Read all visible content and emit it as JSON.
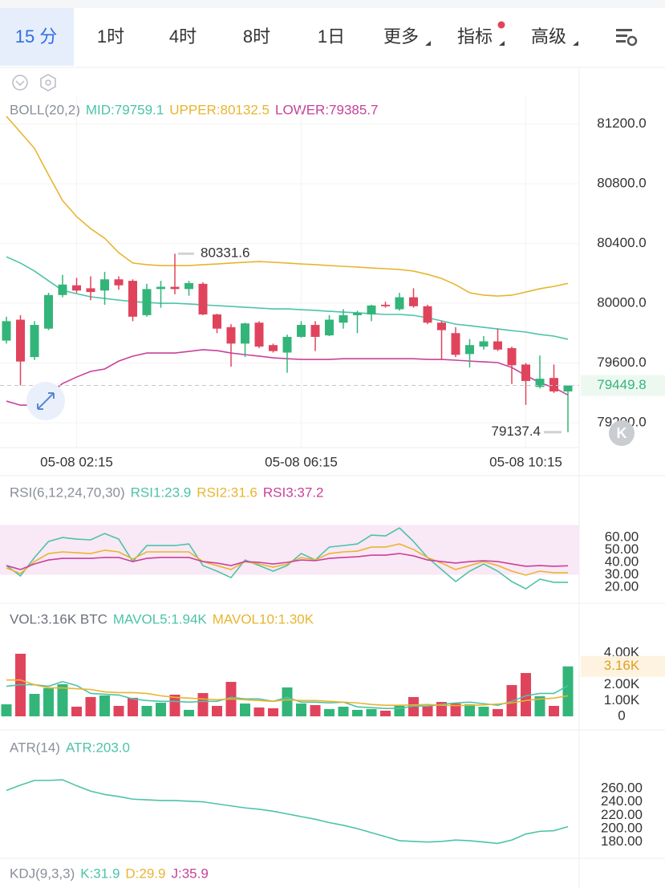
{
  "tabs": [
    "15 分",
    "1时",
    "4时",
    "8时",
    "1日",
    "更多",
    "指标",
    "高级"
  ],
  "active_tab": 0,
  "reset_button": "K",
  "time_labels": [
    "05-08 02:15",
    "05-08 06:15",
    "05-08 10:15"
  ],
  "colors": {
    "up": "#33b57a",
    "down": "#e0445c"
  },
  "main": {
    "legend": [
      {
        "text": "BOLL(20,2)",
        "color": "#8a8f99"
      },
      {
        "text": "MID:79759.1",
        "color": "#4cc3a8"
      },
      {
        "text": "UPPER:80132.5",
        "color": "#e8b530"
      },
      {
        "text": "LOWER:79385.7",
        "color": "#c8429b"
      }
    ],
    "ylim": [
      79034,
      81385
    ],
    "yticks": [
      {
        "value": 81200,
        "label": "81200.0"
      },
      {
        "value": 80800,
        "label": "80800.0"
      },
      {
        "value": 80400,
        "label": "80400.0"
      },
      {
        "value": 80000,
        "label": "80000.0"
      },
      {
        "value": 79600,
        "label": "79600.0"
      },
      {
        "value": 79200,
        "label": "79200.0"
      }
    ],
    "open": [
      79750,
      79890,
      79640,
      79830,
      80055,
      80120,
      80100,
      80085,
      80160,
      80150,
      79920,
      80095,
      80110,
      80095,
      80130,
      79925,
      79840,
      79730,
      79870,
      79720,
      79670,
      79775,
      79855,
      79785,
      79870,
      79920,
      79925,
      79990,
      79960,
      80040,
      79980,
      79870,
      79800,
      79660,
      79710,
      79745,
      79700,
      79590,
      79440,
      79500,
      79410
    ],
    "close": [
      79880,
      79610,
      79855,
      80055,
      80125,
      80085,
      80075,
      80160,
      80120,
      79910,
      80095,
      80110,
      80095,
      80135,
      79925,
      79830,
      79730,
      79865,
      79710,
      79680,
      79775,
      79855,
      79775,
      79890,
      79920,
      79935,
      79985,
      79980,
      80040,
      79980,
      79870,
      79820,
      79655,
      79720,
      79745,
      79690,
      79585,
      79480,
      79495,
      79410,
      79449.8
    ],
    "high": [
      79910,
      79920,
      79880,
      80070,
      80190,
      80170,
      80180,
      80210,
      80180,
      80160,
      80130,
      80150,
      80331.6,
      80150,
      80140,
      79930,
      79860,
      79870,
      79880,
      79730,
      79790,
      79880,
      79880,
      79920,
      79960,
      79950,
      79990,
      80010,
      80070,
      80100,
      79990,
      79880,
      79840,
      79760,
      79780,
      79830,
      79710,
      79600,
      79650,
      79590,
      79450
    ],
    "low": [
      79730,
      79450,
      79620,
      79820,
      80040,
      80070,
      80020,
      79990,
      80090,
      79880,
      79910,
      79970,
      80060,
      80050,
      79920,
      79800,
      79575,
      79640,
      79700,
      79670,
      79535,
      79770,
      79680,
      79780,
      79830,
      79800,
      79880,
      79970,
      79950,
      79970,
      79860,
      79620,
      79640,
      79570,
      79690,
      79680,
      79460,
      79320,
      79430,
      79400,
      79137.4
    ],
    "series": [
      {
        "name": "UPPER",
        "color": "#e8b530",
        "values": [
          81251,
          81144,
          81036,
          80859,
          80687,
          80580,
          80499,
          80435,
          80338,
          80269,
          80258,
          80252,
          80252,
          80252,
          80258,
          80263,
          80269,
          80274,
          80279,
          80274,
          80269,
          80263,
          80258,
          80252,
          80247,
          80242,
          80236,
          80231,
          80226,
          80215,
          80193,
          80166,
          80124,
          80070,
          80054,
          80048,
          80054,
          80075,
          80097,
          80113,
          80132.5
        ]
      },
      {
        "name": "MID",
        "color": "#4cc3a8",
        "values": [
          80311,
          80269,
          80215,
          80150,
          80086,
          80064,
          80043,
          80032,
          80021,
          80011,
          80005,
          80000,
          80000,
          79995,
          79989,
          79984,
          79979,
          79973,
          79968,
          79962,
          79962,
          79957,
          79952,
          79946,
          79941,
          79936,
          79930,
          79925,
          79925,
          79919,
          79903,
          79882,
          79860,
          79850,
          79839,
          79828,
          79817,
          79807,
          79791,
          79780,
          79759.1
        ]
      },
      {
        "name": "LOWER",
        "color": "#c8429b",
        "values": [
          79345,
          79318,
          79318,
          79388,
          79463,
          79506,
          79544,
          79560,
          79613,
          79646,
          79667,
          79667,
          79667,
          79678,
          79689,
          79683,
          79667,
          79656,
          79646,
          79635,
          79629,
          79624,
          79624,
          79624,
          79629,
          79629,
          79629,
          79629,
          79629,
          79629,
          79624,
          79624,
          79619,
          79613,
          79608,
          79603,
          79570,
          79517,
          79468,
          79436,
          79385.7
        ]
      }
    ]
  },
  "rsi": {
    "legend": [
      {
        "text": "RSI(6,12,24,70,30)",
        "color": "#8a8f99"
      },
      {
        "text": "RSI1:23.9",
        "color": "#4cc3a8"
      },
      {
        "text": "RSI2:31.6",
        "color": "#e8b530"
      },
      {
        "text": "RSI3:37.2",
        "color": "#c8429b"
      }
    ],
    "ylim": [
      11.6,
      79.4
    ],
    "band": [
      30,
      70
    ],
    "yticks": [
      {
        "value": 60,
        "label": "60.00"
      },
      {
        "value": 50,
        "label": "50.00"
      },
      {
        "value": 40,
        "label": "40.00"
      },
      {
        "value": 30,
        "label": "30.00"
      },
      {
        "value": 20,
        "label": "20.00"
      }
    ],
    "series": [
      {
        "name": "RSI1",
        "color": "#4cc3a8",
        "values": [
          37.4,
          29.0,
          43.9,
          56.8,
          60,
          58.7,
          58.1,
          63.2,
          58.7,
          40.6,
          53.5,
          53.5,
          53.5,
          54.8,
          37.4,
          32.9,
          27.7,
          41.9,
          37.4,
          32.9,
          37.4,
          47.1,
          41.9,
          52.3,
          53.5,
          54.8,
          61.9,
          61.3,
          67.7,
          56.8,
          43.9,
          34.2,
          24.5,
          32.9,
          38.7,
          32.9,
          24.5,
          18.7,
          26.5,
          23.9,
          23.9
        ]
      },
      {
        "name": "RSI2",
        "color": "#e8b530",
        "values": [
          35.5,
          31.0,
          40.6,
          47.1,
          48.4,
          47.7,
          47.1,
          49.7,
          48.4,
          42.6,
          48.4,
          48.4,
          48.4,
          48.4,
          40.6,
          37.4,
          34.2,
          40.6,
          38.7,
          36.1,
          38.7,
          43.9,
          41.9,
          47.1,
          48.4,
          49.0,
          52.3,
          52.3,
          54.8,
          50.3,
          43.9,
          39.4,
          34.2,
          37.4,
          40.6,
          37.4,
          32.9,
          29.7,
          32.9,
          31.6,
          31.6
        ]
      },
      {
        "name": "RSI3",
        "color": "#c8429b",
        "values": [
          37.4,
          34.2,
          38.7,
          41.9,
          43.2,
          43.2,
          43.2,
          43.9,
          43.9,
          40.6,
          43.2,
          43.9,
          43.9,
          43.9,
          40.6,
          39.4,
          37.4,
          40.6,
          40.0,
          38.7,
          40.0,
          41.9,
          41.3,
          43.2,
          43.9,
          44.5,
          45.8,
          45.8,
          47.1,
          45.2,
          41.9,
          40.6,
          39.4,
          40.6,
          41.3,
          40.6,
          38.7,
          36.8,
          37.4,
          36.8,
          37.2
        ]
      }
    ]
  },
  "vol": {
    "legend": [
      {
        "text": "VOL:3.16K BTC",
        "color": "#6b707a"
      },
      {
        "text": "MAVOL5:1.94K",
        "color": "#4cc3a8"
      },
      {
        "text": "MAVOL10:1.30K",
        "color": "#e8b530"
      }
    ],
    "ylim": [
      0,
      4720
    ],
    "yticks": [
      {
        "value": 4000,
        "label": "4.00K"
      },
      {
        "value": 2000,
        "label": "2.00K"
      },
      {
        "value": 1000,
        "label": "1.00K"
      },
      0
    ],
    "values": [
      760,
      3960,
      1420,
      1780,
      2030,
      610,
      1220,
      1320,
      660,
      1170,
      660,
      860,
      1370,
      410,
      1470,
      660,
      2180,
      810,
      560,
      510,
      1830,
      810,
      710,
      460,
      610,
      410,
      460,
      360,
      660,
      1220,
      660,
      910,
      810,
      760,
      610,
      460,
      1980,
      2740,
      1270,
      660,
      3160
    ],
    "current_label": "3.16K",
    "series": [
      {
        "name": "MAVOL5",
        "color": "#4cc3a8",
        "values": [
          1900,
          2000,
          2000,
          1900,
          2200,
          1950,
          1450,
          1400,
          1350,
          1100,
          1000,
          950,
          950,
          900,
          950,
          950,
          1200,
          1100,
          1100,
          950,
          1200,
          900,
          900,
          850,
          900,
          600,
          550,
          500,
          500,
          650,
          650,
          750,
          850,
          900,
          800,
          700,
          950,
          1300,
          1450,
          1450,
          1940
        ]
      },
      {
        "name": "MAVOL10",
        "color": "#e8b530",
        "values": [
          2300,
          2300,
          2000,
          1800,
          1800,
          1750,
          1700,
          1550,
          1500,
          1500,
          1450,
          1300,
          1200,
          1150,
          1100,
          1050,
          1100,
          1050,
          1000,
          950,
          1050,
          1000,
          1000,
          950,
          900,
          850,
          750,
          700,
          700,
          720,
          750,
          700,
          680,
          700,
          720,
          780,
          850,
          1000,
          1100,
          1150,
          1300
        ]
      }
    ]
  },
  "atr": {
    "legend": [
      {
        "text": "ATR(14)",
        "color": "#8a8f99"
      },
      {
        "text": "ATR:203.0",
        "color": "#4cc3a8"
      }
    ],
    "ylim": [
      167.7,
      293.4
    ],
    "yticks": [
      {
        "value": 260,
        "label": "260.00"
      },
      {
        "value": 240,
        "label": "240.00"
      },
      {
        "value": 220,
        "label": "220.00"
      },
      {
        "value": 200,
        "label": "200.00"
      },
      {
        "value": 180,
        "label": "180.00"
      }
    ],
    "series": [
      {
        "name": "ATR",
        "color": "#4cc3a8",
        "values": [
          257,
          265,
          272,
          272,
          273,
          264,
          256,
          251,
          248,
          244,
          243,
          242,
          242,
          241,
          240,
          237,
          234,
          231,
          229,
          226,
          222,
          218,
          214,
          209,
          205,
          200,
          194,
          188,
          182,
          181,
          180,
          181,
          183,
          182,
          180,
          178,
          183,
          192,
          196,
          197,
          203
        ]
      }
    ]
  },
  "kdj": {
    "legend": [
      {
        "text": "KDJ(9,3,3)",
        "color": "#8a8f99"
      },
      {
        "text": "K:31.9",
        "color": "#4cc3a8"
      },
      {
        "text": "D:29.9",
        "color": "#e8b530"
      },
      {
        "text": "J:35.9",
        "color": "#c8429b"
      }
    ]
  }
}
